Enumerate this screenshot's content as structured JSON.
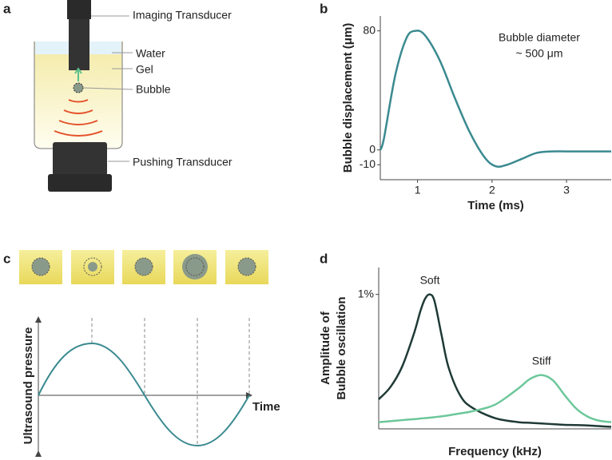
{
  "panel_labels": [
    "a",
    "b",
    "c",
    "d"
  ],
  "diagram_a": {
    "labels": [
      "Imaging Transducer",
      "Water",
      "Gel",
      "Bubble",
      "Pushing Transducer"
    ]
  },
  "panel_c": {
    "ylabel": "Ultrasound pressure",
    "xlabel": "Time"
  },
  "chart_data": [
    {
      "type": "line",
      "xlabel": "Time (ms)",
      "ylabel": "Bubble displacement (μm)",
      "annotation": [
        "Bubble diameter",
        "~ 500 μm"
      ],
      "color": "#3a8a90",
      "x": [
        0.5,
        0.55,
        0.7,
        0.85,
        0.97,
        1.1,
        1.3,
        1.5,
        1.7,
        1.9,
        2.05,
        2.2,
        2.4,
        2.6,
        2.8,
        3.0,
        3.3,
        3.6
      ],
      "values": [
        0,
        8,
        50,
        75,
        80,
        77,
        60,
        35,
        12,
        -5,
        -11,
        -10,
        -6,
        -2,
        -1,
        -1,
        -1,
        -1
      ],
      "xlim": [
        0.5,
        3.6
      ],
      "ylim": [
        -20,
        90
      ],
      "xticks": [
        1,
        2,
        3
      ],
      "yticks": [
        80,
        0,
        -10
      ]
    },
    {
      "type": "line",
      "xlabel": "Frequency (kHz)",
      "ylabel": [
        "Amplitude of",
        "Bubble oscillation"
      ],
      "x": [
        0,
        0.5,
        1,
        1.5,
        1.8,
        2.0,
        2.2,
        2.4,
        2.7,
        3,
        3.5,
        4,
        5,
        6,
        6.5,
        7,
        7.5,
        8,
        8.5,
        9,
        9.5,
        10
      ],
      "series": [
        {
          "name": "Soft",
          "color": "#1f3a36",
          "values": [
            0.22,
            0.31,
            0.46,
            0.7,
            0.88,
            0.97,
            1.0,
            0.95,
            0.7,
            0.46,
            0.25,
            0.16,
            0.08,
            0.05,
            0.045,
            0.04,
            0.035,
            0.03,
            0.028,
            0.025,
            0.02,
            0.015
          ]
        },
        {
          "name": "Stiff",
          "color": "#6cc79a",
          "values": [
            0.05,
            0.057,
            0.065,
            0.072,
            0.077,
            0.08,
            0.083,
            0.087,
            0.093,
            0.1,
            0.115,
            0.13,
            0.18,
            0.3,
            0.37,
            0.4,
            0.36,
            0.25,
            0.15,
            0.09,
            0.06,
            0.05
          ]
        }
      ],
      "xlim": [
        0,
        10
      ],
      "ylim": [
        0,
        1.2
      ],
      "yticks": [
        {
          "value": 1,
          "label": "1%"
        }
      ]
    }
  ]
}
